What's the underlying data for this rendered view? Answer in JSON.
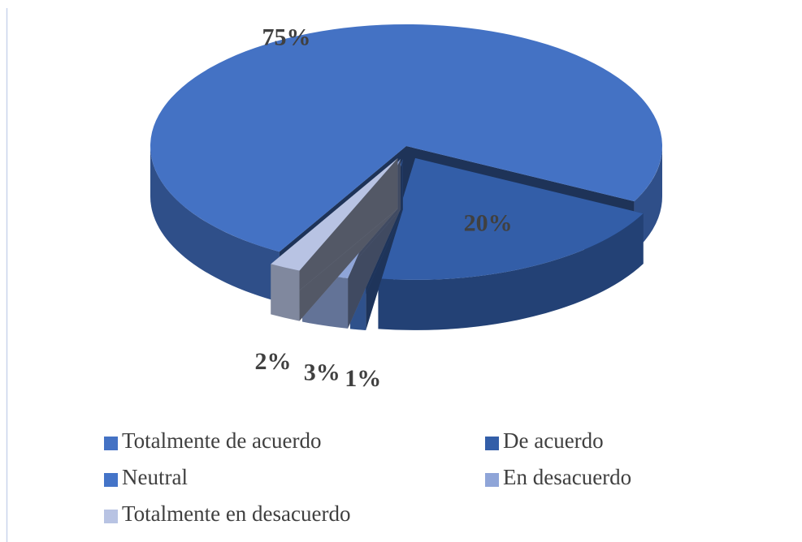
{
  "chart_data": {
    "type": "pie",
    "three_d": true,
    "categories": [
      "Totalmente de acuerdo",
      "De acuerdo",
      "Neutral",
      "En desacuerdo",
      "Totalmente en desacuerdo"
    ],
    "values": [
      75,
      20,
      1,
      3,
      2
    ],
    "value_labels": [
      "75%",
      "20%",
      "1%",
      "3%",
      "2%"
    ],
    "colors": [
      "#4472c4",
      "#335ea8",
      "#4474c8",
      "#8fa5d8",
      "#b8c3e3"
    ],
    "legend": "bottom"
  }
}
